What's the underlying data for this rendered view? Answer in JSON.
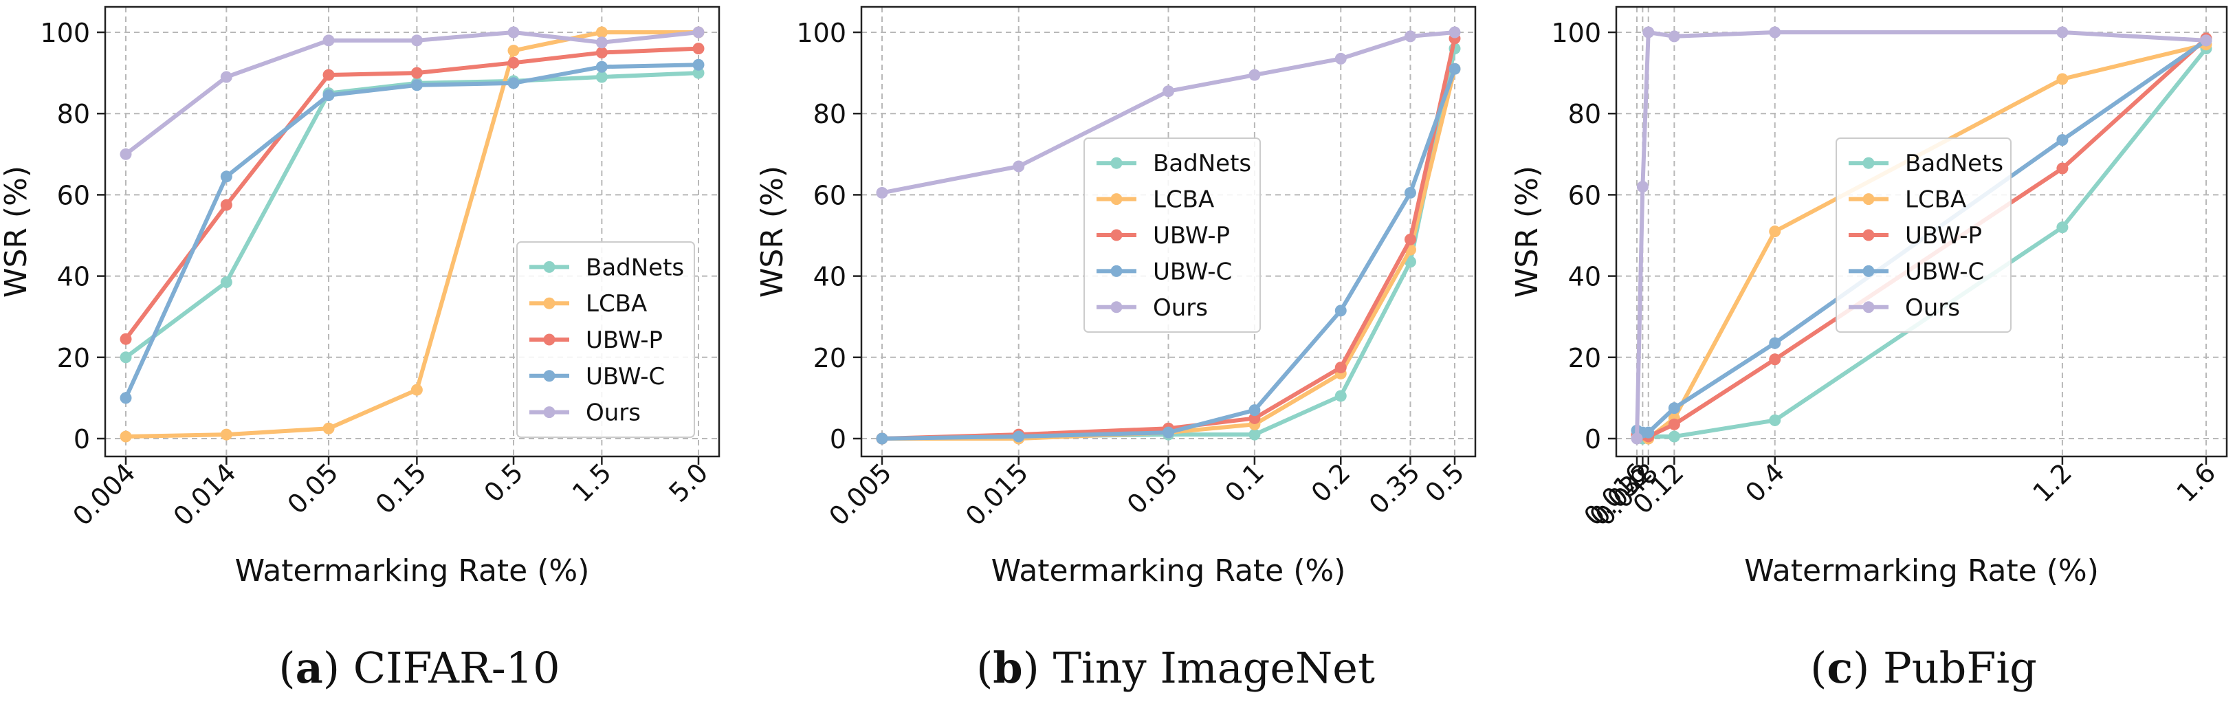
{
  "chart_data": [
    {
      "type": "line",
      "caption_letter": "a",
      "caption_text": "CIFAR-10",
      "xlabel": "Watermarking Rate (%)",
      "ylabel": "WSR (%)",
      "x_scale": "log",
      "x": [
        0.004,
        0.014,
        0.05,
        0.15,
        0.5,
        1.5,
        5.0
      ],
      "x_tick_labels": [
        "0.004",
        "0.014",
        "0.05",
        "0.15",
        "0.5",
        "1.5",
        "5.0"
      ],
      "ylim": [
        0,
        100
      ],
      "y_ticks": [
        0,
        20,
        40,
        60,
        80,
        100
      ],
      "grid": true,
      "legend_position": "lower-right",
      "series": [
        {
          "name": "BadNets",
          "color": "#8dd3c7",
          "values": [
            20,
            38.5,
            85,
            87.5,
            88,
            89,
            90
          ]
        },
        {
          "name": "LCBA",
          "color": "#fdbf6f",
          "values": [
            0.5,
            1,
            2.5,
            12,
            95.5,
            100,
            100
          ]
        },
        {
          "name": "UBW-P",
          "color": "#ef7b6f",
          "values": [
            24.5,
            57.5,
            89.5,
            90,
            92.5,
            95,
            96
          ]
        },
        {
          "name": "UBW-C",
          "color": "#7fadd3",
          "values": [
            10,
            64.5,
            84.5,
            87,
            87.5,
            91.5,
            92
          ]
        },
        {
          "name": "Ours",
          "color": "#bcb2d9",
          "values": [
            70,
            89,
            98,
            98,
            100,
            97.5,
            100
          ]
        }
      ]
    },
    {
      "type": "line",
      "caption_letter": "b",
      "caption_text": "Tiny ImageNet",
      "xlabel": "Watermarking Rate (%)",
      "ylabel": "WSR (%)",
      "x_scale": "log",
      "x": [
        0.005,
        0.015,
        0.05,
        0.1,
        0.2,
        0.35,
        0.5
      ],
      "x_tick_labels": [
        "0.005",
        "0.015",
        "0.05",
        "0.1",
        "0.2",
        "0.35",
        "0.5"
      ],
      "ylim": [
        0,
        100
      ],
      "y_ticks": [
        0,
        20,
        40,
        60,
        80,
        100
      ],
      "grid": true,
      "legend_position": "center",
      "series": [
        {
          "name": "BadNets",
          "color": "#8dd3c7",
          "values": [
            0,
            0.5,
            1,
            1,
            10.5,
            43.5,
            96
          ]
        },
        {
          "name": "LCBA",
          "color": "#fdbf6f",
          "values": [
            0,
            0,
            1.5,
            3.5,
            16,
            46.5,
            91
          ]
        },
        {
          "name": "UBW-P",
          "color": "#ef7b6f",
          "values": [
            0,
            1,
            2.5,
            5,
            17.5,
            49,
            98.5
          ]
        },
        {
          "name": "UBW-C",
          "color": "#7fadd3",
          "values": [
            0,
            0.5,
            1.5,
            7,
            31.5,
            60.5,
            91
          ]
        },
        {
          "name": "Ours",
          "color": "#bcb2d9",
          "values": [
            60.5,
            67,
            85.5,
            89.5,
            93.5,
            99,
            100
          ]
        }
      ]
    },
    {
      "type": "line",
      "caption_letter": "c",
      "caption_text": "PubFig",
      "xlabel": "Watermarking Rate (%)",
      "ylabel": "WSR (%)",
      "x_scale": "linear",
      "x": [
        0.016,
        0.032,
        0.048,
        0.12,
        0.4,
        1.2,
        1.6
      ],
      "x_tick_positions": [
        0.016,
        0.032,
        0.048,
        0.12,
        0.4,
        1.2,
        1.6
      ],
      "x_tick_labels": [
        "0.016",
        "0.032",
        "0.048",
        "0.12",
        "0.4",
        "1.2",
        "1.6"
      ],
      "ylim": [
        0,
        100
      ],
      "y_ticks": [
        0,
        20,
        40,
        60,
        80,
        100
      ],
      "grid": true,
      "legend_position": "center",
      "series": [
        {
          "name": "BadNets",
          "color": "#8dd3c7",
          "values": [
            0.5,
            0,
            0.5,
            0.5,
            4.5,
            52,
            96
          ]
        },
        {
          "name": "LCBA",
          "color": "#fdbf6f",
          "values": [
            1,
            1,
            0,
            5,
            51,
            88.5,
            97
          ]
        },
        {
          "name": "UBW-P",
          "color": "#ef7b6f",
          "values": [
            1,
            1,
            0.5,
            3.5,
            19.5,
            66.5,
            98.5
          ]
        },
        {
          "name": "UBW-C",
          "color": "#7fadd3",
          "values": [
            2,
            1.5,
            1.5,
            7.5,
            23.5,
            73.5,
            98
          ]
        },
        {
          "name": "Ours",
          "color": "#bcb2d9",
          "values": [
            0,
            62,
            100,
            99,
            100,
            100,
            98
          ]
        }
      ]
    }
  ]
}
